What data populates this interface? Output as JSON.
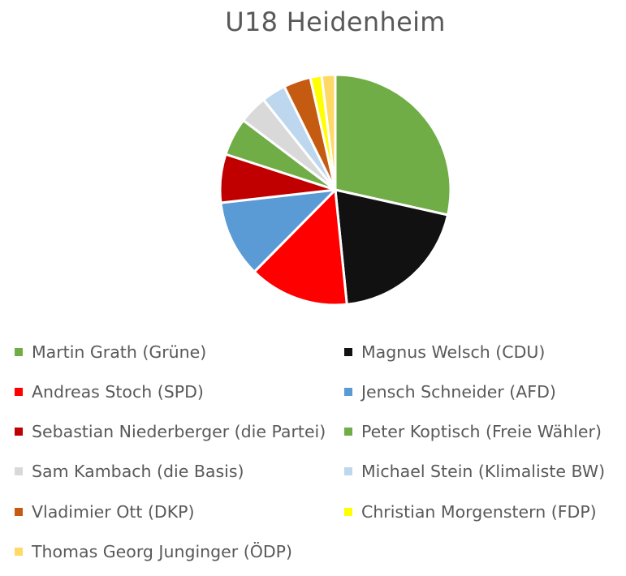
{
  "chart_data": {
    "type": "pie",
    "title": "U18 Heidenheim",
    "start_angle_deg": 0,
    "direction": "clockwise",
    "legend_position": "bottom",
    "categories": [
      "Martin Grath (Grüne)",
      "Magnus Welsch (CDU)",
      "Andreas Stoch (SPD)",
      "Jensch Schneider (AFD)",
      "Sebastian Niederberger (die Partei)",
      "Peter Koptisch (Freie Wähler)",
      "Sam Kambach (die Basis)",
      "Michael Stein (Klimaliste BW)",
      "Vladimier Ott (DKP)",
      "Christian Morgenstern (FDP)",
      "Thomas Georg Junginger (ÖDP)"
    ],
    "values": [
      28.5,
      19.9,
      14.0,
      10.8,
      6.8,
      5.3,
      4.0,
      3.4,
      3.8,
      1.6,
      1.9
    ],
    "unit": "% (estimated from slice angles)",
    "colors": [
      "#70ad47",
      "#111111",
      "#ff0000",
      "#5b9bd5",
      "#c00000",
      "#70ad47",
      "#d9d9d9",
      "#bdd7ee",
      "#c55a11",
      "#ffff00",
      "#ffd966"
    ]
  },
  "legend": {
    "items": [
      {
        "label": "Martin Grath (Grüne)",
        "color": "#70ad47"
      },
      {
        "label": "Magnus Welsch (CDU)",
        "color": "#111111"
      },
      {
        "label": "Andreas Stoch (SPD)",
        "color": "#ff0000"
      },
      {
        "label": "Jensch Schneider (AFD)",
        "color": "#5b9bd5"
      },
      {
        "label": "Sebastian Niederberger (die Partei)",
        "color": "#c00000"
      },
      {
        "label": "Peter Koptisch (Freie Wähler)",
        "color": "#70ad47"
      },
      {
        "label": "Sam Kambach (die Basis)",
        "color": "#d9d9d9"
      },
      {
        "label": "Michael Stein (Klimaliste BW)",
        "color": "#bdd7ee"
      },
      {
        "label": "Vladimier Ott (DKP)",
        "color": "#c55a11"
      },
      {
        "label": "Christian Morgenstern (FDP)",
        "color": "#ffff00"
      },
      {
        "label": "Thomas Georg Junginger (ÖDP)",
        "color": "#ffd966"
      }
    ]
  }
}
